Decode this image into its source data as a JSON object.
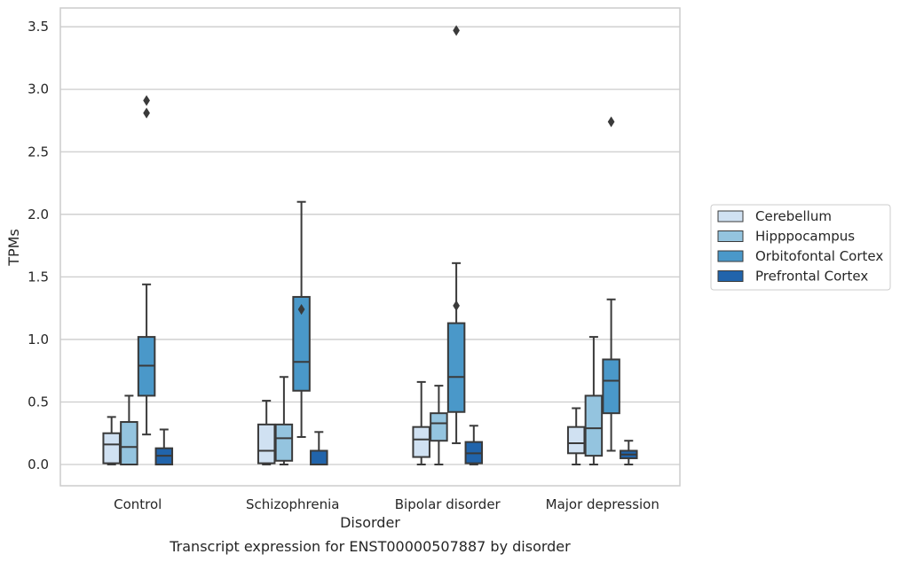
{
  "chart_data": {
    "type": "box",
    "title": "Transcript expression for ENST00000507887 by disorder",
    "xlabel": "Disorder",
    "ylabel": "TPMs",
    "ylim": [
      -0.17,
      3.65
    ],
    "yticks": [
      "0.0",
      "0.5",
      "1.0",
      "1.5",
      "2.0",
      "2.5",
      "3.0",
      "3.5"
    ],
    "grid": true,
    "legend_position": "right",
    "categories": [
      "Control",
      "Schizophrenia",
      "Bipolar disorder",
      "Major depression"
    ],
    "series": [
      {
        "name": "Cerebellum",
        "color": "#d0e1f2",
        "boxes": [
          {
            "whislo": 0.0,
            "q1": 0.01,
            "med": 0.16,
            "q3": 0.25,
            "whishi": 0.38,
            "fliers": []
          },
          {
            "whislo": 0.0,
            "q1": 0.01,
            "med": 0.11,
            "q3": 0.32,
            "whishi": 0.51,
            "fliers": []
          },
          {
            "whislo": 0.0,
            "q1": 0.06,
            "med": 0.2,
            "q3": 0.3,
            "whishi": 0.66,
            "fliers": []
          },
          {
            "whislo": 0.0,
            "q1": 0.09,
            "med": 0.17,
            "q3": 0.3,
            "whishi": 0.45,
            "fliers": []
          }
        ]
      },
      {
        "name": "Hipppocampus",
        "color": "#94c4df",
        "boxes": [
          {
            "whislo": 0.0,
            "q1": 0.0,
            "med": 0.14,
            "q3": 0.34,
            "whishi": 0.55,
            "fliers": []
          },
          {
            "whislo": 0.0,
            "q1": 0.03,
            "med": 0.21,
            "q3": 0.32,
            "whishi": 0.7,
            "fliers": []
          },
          {
            "whislo": 0.0,
            "q1": 0.19,
            "med": 0.33,
            "q3": 0.41,
            "whishi": 0.63,
            "fliers": []
          },
          {
            "whislo": 0.0,
            "q1": 0.07,
            "med": 0.29,
            "q3": 0.55,
            "whishi": 1.02,
            "fliers": []
          }
        ]
      },
      {
        "name": "Orbitofontal Cortex",
        "color": "#4a98c9",
        "boxes": [
          {
            "whislo": 0.24,
            "q1": 0.55,
            "med": 0.79,
            "q3": 1.02,
            "whishi": 1.44,
            "fliers": [
              2.81,
              2.91
            ]
          },
          {
            "whislo": 0.22,
            "q1": 0.59,
            "med": 0.82,
            "q3": 1.34,
            "whishi": 2.1,
            "fliers": [
              1.24
            ]
          },
          {
            "whislo": 0.17,
            "q1": 0.42,
            "med": 0.7,
            "q3": 1.13,
            "whishi": 1.61,
            "fliers": [
              1.27,
              3.47
            ]
          },
          {
            "whislo": 0.11,
            "q1": 0.41,
            "med": 0.67,
            "q3": 0.84,
            "whishi": 1.32,
            "fliers": [
              2.74
            ]
          }
        ]
      },
      {
        "name": "Prefrontal Cortex",
        "color": "#2164ab",
        "boxes": [
          {
            "whislo": 0.0,
            "q1": 0.0,
            "med": 0.07,
            "q3": 0.13,
            "whishi": 0.28,
            "fliers": []
          },
          {
            "whislo": 0.0,
            "q1": 0.0,
            "med": 0.0,
            "q3": 0.11,
            "whishi": 0.26,
            "fliers": []
          },
          {
            "whislo": 0.0,
            "q1": 0.01,
            "med": 0.09,
            "q3": 0.18,
            "whishi": 0.31,
            "fliers": []
          },
          {
            "whislo": 0.0,
            "q1": 0.05,
            "med": 0.08,
            "q3": 0.11,
            "whishi": 0.19,
            "fliers": []
          }
        ]
      }
    ]
  }
}
